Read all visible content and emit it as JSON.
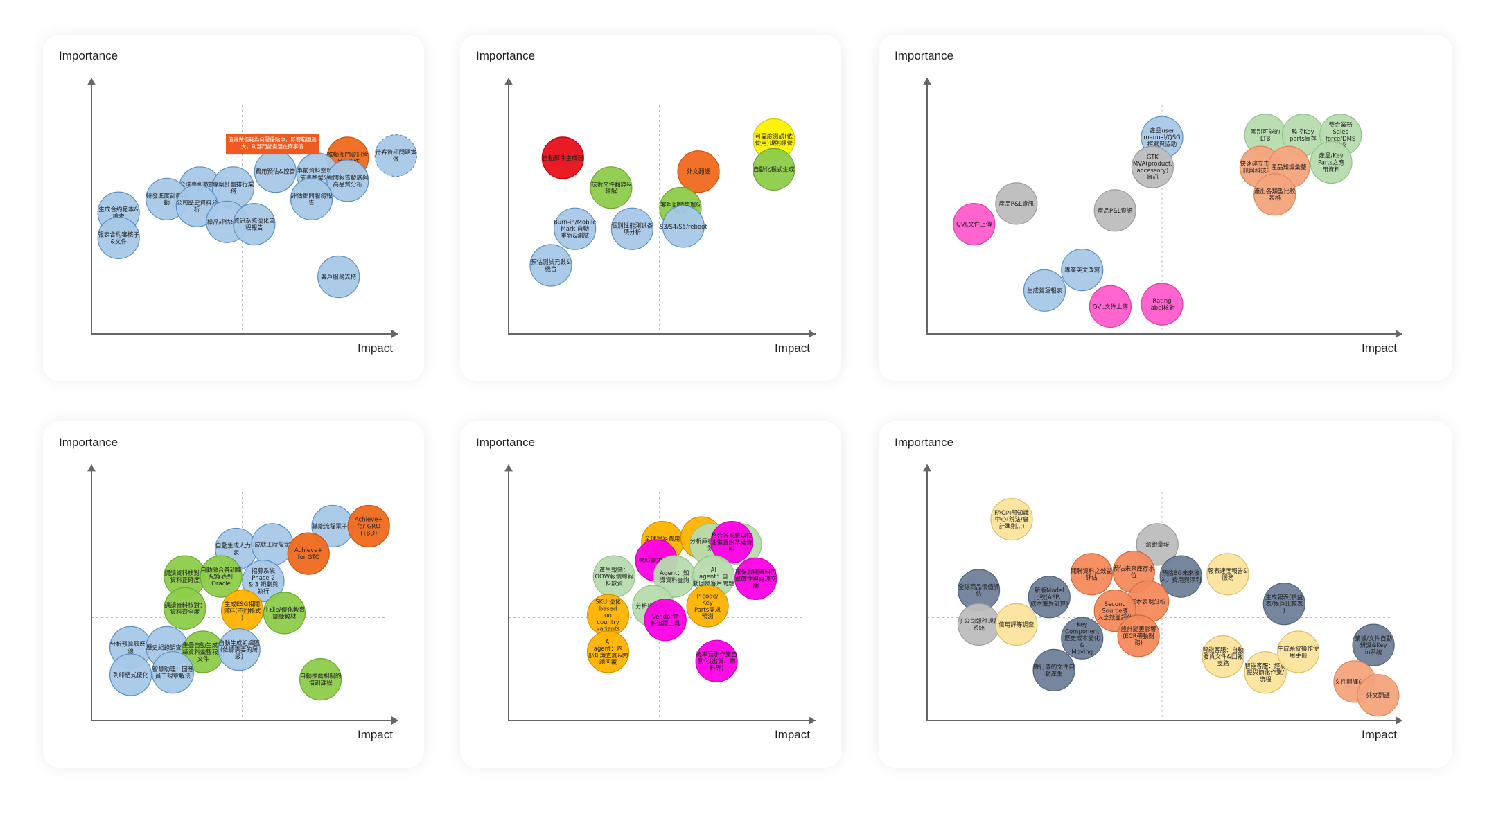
{
  "colors": {
    "blue": "#a6c8e8",
    "blueStroke": "#5b8ec4",
    "red": "#e8101a",
    "orange": "#ef6a1c",
    "yellow": "#fff200",
    "green": "#8ccc4a",
    "grey": "#bdbdbd",
    "pink": "#ff5ccc",
    "peach": "#f4a47c",
    "sage": "#b6dcae",
    "gold": "#ffb300",
    "magenta": "#ff00e6",
    "slate": "#6f7f99",
    "lightyellow": "#fce49b",
    "note": "#f05a1e"
  },
  "chart_data": [
    {
      "type": "scatter",
      "xlabel": "Impact",
      "ylabel": "Importance",
      "xlim": [
        0,
        100
      ],
      "ylim": [
        0,
        100
      ],
      "midlines": {
        "x": 50,
        "y": 45
      },
      "annotations": [
        {
          "text": "值得做但耗為何需優點中，影響範圍過大，則部門計畫潛在商事情",
          "x": 60,
          "y": 83
        }
      ],
      "points": [
        {
          "label": "待客資訊問題實做",
          "x": 101,
          "y": 78,
          "color": "blue",
          "dashed": true
        },
        {
          "label": "推動部門資訊管理商合作",
          "x": 85,
          "y": 77,
          "color": "orange"
        },
        {
          "label": "費用預估&控管",
          "x": 61,
          "y": 71,
          "color": "blue"
        },
        {
          "label": "事前資料整理及依進應型分類",
          "x": 75,
          "y": 70,
          "color": "blue"
        },
        {
          "label": "新聞報告發展與高品質分析",
          "x": 85,
          "y": 67,
          "color": "blue"
        },
        {
          "label": "全球專利數據分析",
          "x": 36,
          "y": 64,
          "color": "blue"
        },
        {
          "label": "專案計劃排行業務",
          "x": 47,
          "y": 64,
          "color": "blue"
        },
        {
          "label": "研發進度計劃推動",
          "x": 25,
          "y": 59,
          "color": "blue"
        },
        {
          "label": "公司歷史資料分析",
          "x": 35,
          "y": 56,
          "color": "blue"
        },
        {
          "label": "評估顧問服務報告",
          "x": 73,
          "y": 59,
          "color": "blue"
        },
        {
          "label": "生成合約範本&檢查",
          "x": 9,
          "y": 53,
          "color": "blue"
        },
        {
          "label": "樣品評估&報告",
          "x": 45,
          "y": 49,
          "color": "blue"
        },
        {
          "label": "資訊系統優化流程報告",
          "x": 54,
          "y": 48,
          "color": "blue"
        },
        {
          "label": "報表合約審核子&文件",
          "x": 9,
          "y": 42,
          "color": "blue"
        },
        {
          "label": "客戶服務支持",
          "x": 82,
          "y": 25,
          "color": "blue"
        }
      ]
    },
    {
      "type": "scatter",
      "xlabel": "Impact",
      "ylabel": "Importance",
      "xlim": [
        0,
        100
      ],
      "ylim": [
        0,
        100
      ],
      "midlines": {
        "x": 50,
        "y": 45
      },
      "points": [
        {
          "label": "可靠度測試(依使用)規則經營",
          "x": 88,
          "y": 85,
          "color": "yellow"
        },
        {
          "label": "自動化程式生成",
          "x": 88,
          "y": 72,
          "color": "green"
        },
        {
          "label": "自動郵件生成器",
          "x": 18,
          "y": 77,
          "color": "red"
        },
        {
          "label": "外文翻譯",
          "x": 63,
          "y": 71,
          "color": "orange"
        },
        {
          "label": "技術文件翻譯&理解",
          "x": 34,
          "y": 64,
          "color": "green"
        },
        {
          "label": "客戶回饋整理&處理",
          "x": 57,
          "y": 55,
          "color": "green"
        },
        {
          "label": "Burn-in/Mobile Mark 自動重新&測試",
          "x": 22,
          "y": 46,
          "color": "blue"
        },
        {
          "label": "個別性能測試各項分析",
          "x": 41,
          "y": 46,
          "color": "blue"
        },
        {
          "label": "S3/S4/S5/reboot",
          "x": 58,
          "y": 47,
          "color": "blue"
        },
        {
          "label": "預估測試元數&機台",
          "x": 14,
          "y": 30,
          "color": "blue"
        }
      ]
    },
    {
      "type": "scatter",
      "xlabel": "Impact",
      "ylabel": "Importance",
      "xlim": [
        0,
        100
      ],
      "ylim": [
        0,
        100
      ],
      "midlines": {
        "x": 50,
        "y": 45
      },
      "points": [
        {
          "label": "產品user manual/QSG撰寫與協助",
          "x": 50,
          "y": 86,
          "color": "blue"
        },
        {
          "label": "國別可能的LTB",
          "x": 72,
          "y": 87,
          "color": "sage"
        },
        {
          "label": "監控Key parts庫存",
          "x": 80,
          "y": 87,
          "color": "sage"
        },
        {
          "label": "整合業務Sales force/DMS需求",
          "x": 88,
          "y": 87,
          "color": "sage"
        },
        {
          "label": "GTK MVA(product, accessory)資訊",
          "x": 48,
          "y": 73,
          "color": "grey"
        },
        {
          "label": "快速建立市場資訊與科技知識",
          "x": 71,
          "y": 73,
          "color": "peach"
        },
        {
          "label": "產品知識彙整",
          "x": 77,
          "y": 73,
          "color": "peach"
        },
        {
          "label": "產品/Key Parts之應用資料",
          "x": 86,
          "y": 75,
          "color": "sage"
        },
        {
          "label": "產出各類型比較表格",
          "x": 74,
          "y": 61,
          "color": "peach"
        },
        {
          "label": "產品P&L資訊",
          "x": 19,
          "y": 57,
          "color": "grey"
        },
        {
          "label": "產品P&L資訊",
          "x": 40,
          "y": 54,
          "color": "grey"
        },
        {
          "label": "QVL文件上傳",
          "x": 10,
          "y": 48,
          "color": "pink"
        },
        {
          "label": "專業英文改寫",
          "x": 33,
          "y": 28,
          "color": "blue"
        },
        {
          "label": "生成營運報表",
          "x": 25,
          "y": 19,
          "color": "blue"
        },
        {
          "label": "QVL文件上傳",
          "x": 39,
          "y": 12,
          "color": "pink"
        },
        {
          "label": "Rating label核對",
          "x": 50,
          "y": 13,
          "color": "pink"
        }
      ]
    },
    {
      "type": "scatter",
      "xlabel": "Impact",
      "ylabel": "Importance",
      "xlim": [
        0,
        100
      ],
      "ylim": [
        0,
        100
      ],
      "midlines": {
        "x": 50,
        "y": 45
      },
      "points": [
        {
          "label": "職能流程電子化",
          "x": 80,
          "y": 85,
          "color": "blue"
        },
        {
          "label": "Achieve+ for GRO (TBD)",
          "x": 92,
          "y": 85,
          "color": "orange"
        },
        {
          "label": "自動生成人力報表",
          "x": 48,
          "y": 75,
          "color": "blue"
        },
        {
          "label": "成就工時設定",
          "x": 60,
          "y": 77,
          "color": "blue"
        },
        {
          "label": "Achieve+ for GTC",
          "x": 72,
          "y": 73,
          "color": "orange"
        },
        {
          "label": "調讀資料核對：資料正確度",
          "x": 31,
          "y": 63,
          "color": "green"
        },
        {
          "label": "自動擷合各訓練紀錄表到Oracle",
          "x": 43,
          "y": 63,
          "color": "green"
        },
        {
          "label": "招募系統Phase 2 & 3 規劃與執行",
          "x": 57,
          "y": 61,
          "color": "blue"
        },
        {
          "label": "調讀資料核對：資料齊全度",
          "x": 31,
          "y": 49,
          "color": "green"
        },
        {
          "label": "生成ESG相關資料(不同格式)",
          "x": 50,
          "y": 48,
          "color": "gold"
        },
        {
          "label": "生成或優化教育訓練教材",
          "x": 64,
          "y": 47,
          "color": "green"
        },
        {
          "label": "分析預算履歷來源",
          "x": 13,
          "y": 32,
          "color": "blue"
        },
        {
          "label": "歷史紀錄調查跳",
          "x": 25,
          "y": 32,
          "color": "blue"
        },
        {
          "label": "重疊自動生成訓練資料彙整報告文件",
          "x": 37,
          "y": 30,
          "color": "green"
        },
        {
          "label": "自動生成組織圖(依據需要的層級)",
          "x": 49,
          "y": 31,
          "color": "blue"
        },
        {
          "label": "列印格式優化",
          "x": 13,
          "y": 20,
          "color": "blue"
        },
        {
          "label": "智慧助理：回應員工規章解法",
          "x": 27,
          "y": 21,
          "color": "blue"
        },
        {
          "label": "自動推薦相關的培訓課程",
          "x": 76,
          "y": 18,
          "color": "green"
        }
      ]
    },
    {
      "type": "scatter",
      "xlabel": "Impact",
      "ylabel": "Importance",
      "xlim": [
        0,
        100
      ],
      "ylim": [
        0,
        100
      ],
      "midlines": {
        "x": 50,
        "y": 45
      },
      "points": [
        {
          "label": "全球貿易費用LT",
          "x": 51,
          "y": 78,
          "color": "gold"
        },
        {
          "label": "",
          "x": 64,
          "y": 80,
          "color": "gold"
        },
        {
          "label": "分析庫存物料分類",
          "x": 67,
          "y": 77,
          "color": "sage"
        },
        {
          "label": "",
          "x": 77,
          "y": 77,
          "color": "sage"
        },
        {
          "label": "整合各系統以快速備置的準確資料",
          "x": 74,
          "y": 78,
          "color": "magenta"
        },
        {
          "label": "物料需求預測",
          "x": 49,
          "y": 70,
          "color": "magenta"
        },
        {
          "label": "產生報價：OOW報價總報料數資",
          "x": 35,
          "y": 63,
          "color": "sage"
        },
        {
          "label": "Agent：知識資料查詢",
          "x": 55,
          "y": 63,
          "color": "sage"
        },
        {
          "label": "AI agent：自動回覆客戶問題",
          "x": 68,
          "y": 63,
          "color": "sage"
        },
        {
          "label": "確保報關資料的準確性與處理交期",
          "x": 82,
          "y": 62,
          "color": "magenta"
        },
        {
          "label": "分析總報料件",
          "x": 48,
          "y": 50,
          "color": "sage"
        },
        {
          "label": "P code/ Key Parts需求預測",
          "x": 66,
          "y": 50,
          "color": "gold"
        },
        {
          "label": "SKU 優化 based on country variants",
          "x": 33,
          "y": 46,
          "color": "gold"
        },
        {
          "label": "Vendor物料追蹤工具",
          "x": 52,
          "y": 44,
          "color": "magenta"
        },
        {
          "label": "AI agent：內部知識查詢&問題回覆",
          "x": 33,
          "y": 30,
          "color": "gold"
        },
        {
          "label": "機率預測作業自動化(出貨、物料等)",
          "x": 69,
          "y": 26,
          "color": "magenta"
        }
      ]
    },
    {
      "type": "scatter",
      "xlabel": "Impact",
      "ylabel": "Importance",
      "xlim": [
        0,
        100
      ],
      "ylim": [
        0,
        100
      ],
      "midlines": {
        "x": 50,
        "y": 45
      },
      "points": [
        {
          "label": "FAC內部知識中心(稅法/會計準則...)",
          "x": 18,
          "y": 88,
          "color": "lightyellow"
        },
        {
          "label": "溫飽量報",
          "x": 49,
          "y": 77,
          "color": "grey"
        },
        {
          "label": "關聯資料之效益評估",
          "x": 35,
          "y": 64,
          "color": "peach2"
        },
        {
          "label": "預估未來庫存水位",
          "x": 44,
          "y": 65,
          "color": "peach2"
        },
        {
          "label": "預估BG未來收入、費用與淨利",
          "x": 54,
          "y": 63,
          "color": "slate"
        },
        {
          "label": "報表速度報告&服務",
          "x": 64,
          "y": 64,
          "color": "lightyellow"
        },
        {
          "label": "全球商品價值評估",
          "x": 11,
          "y": 57,
          "color": "slate"
        },
        {
          "label": "新版Model比較(ASP、成本差異計算)",
          "x": 26,
          "y": 54,
          "color": "slate"
        },
        {
          "label": "成本表現分析",
          "x": 47,
          "y": 52,
          "color": "peach2"
        },
        {
          "label": "Second Source導入之效益評估",
          "x": 40,
          "y": 48,
          "color": "peach2"
        },
        {
          "label": "生成報表(損益表/帳戶比較表)",
          "x": 76,
          "y": 51,
          "color": "slate"
        },
        {
          "label": "子公司報稅規劃系統",
          "x": 11,
          "y": 42,
          "color": "grey"
        },
        {
          "label": "信用評等調查",
          "x": 19,
          "y": 42,
          "color": "lightyellow"
        },
        {
          "label": "Key Component 歷史成本變化 & Moving Cost",
          "x": 33,
          "y": 36,
          "color": "slate"
        },
        {
          "label": "設計變更影響(ECR帶動財務)",
          "x": 45,
          "y": 37,
          "color": "peach2"
        },
        {
          "label": "數行儀的文件自動產生",
          "x": 27,
          "y": 22,
          "color": "slate"
        },
        {
          "label": "智能客服：自動發貨文件&回報支路",
          "x": 63,
          "y": 28,
          "color": "lightyellow"
        },
        {
          "label": "智能客服：經驗證與簡化作業/流程",
          "x": 72,
          "y": 21,
          "color": "lightyellow"
        },
        {
          "label": "生成系統操作使用手冊",
          "x": 79,
          "y": 30,
          "color": "lightyellow"
        },
        {
          "label": "業據/文件自動辨識&Key in系統",
          "x": 95,
          "y": 33,
          "color": "slate"
        },
        {
          "label": "文件翻譯&校閱",
          "x": 91,
          "y": 17,
          "color": "peach"
        },
        {
          "label": "外文翻譯",
          "x": 96,
          "y": 11,
          "color": "peach"
        }
      ]
    }
  ]
}
